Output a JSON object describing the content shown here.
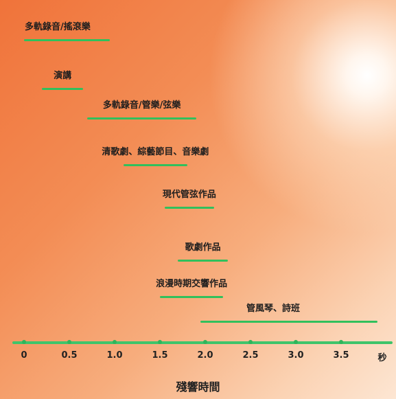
{
  "colors": {
    "bar": "#31c05c",
    "axis": "#3fc46a"
  },
  "axis": {
    "unit_label": "秒",
    "title": "殘響時間",
    "ticks": [
      {
        "value": 0,
        "label": "0"
      },
      {
        "value": 0.5,
        "label": "0.5"
      },
      {
        "value": 1.0,
        "label": "1.0"
      },
      {
        "value": 1.5,
        "label": "1.5"
      },
      {
        "value": 2.0,
        "label": "2.0"
      },
      {
        "value": 2.5,
        "label": "2.5"
      },
      {
        "value": 3.0,
        "label": "3.0"
      },
      {
        "value": 3.5,
        "label": "3.5"
      }
    ]
  },
  "ranges": [
    {
      "label": "多軌錄音/搖滾樂",
      "min": 0,
      "max": 0.95
    },
    {
      "label": "演講",
      "min": 0.2,
      "max": 0.65
    },
    {
      "label": "多軌錄音/管樂/弦樂",
      "min": 0.7,
      "max": 1.9
    },
    {
      "label": "清歌劇、綜藝節目、音樂劇",
      "min": 1.1,
      "max": 1.8
    },
    {
      "label": "現代管弦作品",
      "min": 1.55,
      "max": 2.1
    },
    {
      "label": "歌劇作品",
      "min": 1.7,
      "max": 2.25
    },
    {
      "label": "浪漫時期交響作品",
      "min": 1.5,
      "max": 2.2
    },
    {
      "label": "管風琴、詩班",
      "min": 1.95,
      "max": 3.9
    }
  ]
}
